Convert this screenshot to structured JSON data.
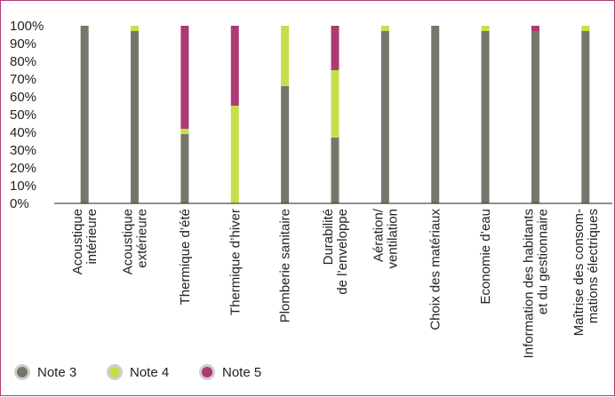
{
  "chart_data": {
    "type": "bar",
    "stacked": true,
    "y_tick_labels": [
      "0%",
      "10%",
      "20%",
      "30%",
      "40%",
      "50%",
      "60%",
      "70%",
      "80%",
      "90%",
      "100%"
    ],
    "ylim": [
      0,
      100
    ],
    "categories": [
      [
        "Acoustique",
        "intérieure"
      ],
      [
        "Acoustique",
        "extérieure"
      ],
      [
        "Thermique d’été"
      ],
      [
        "Thermique d’hiver"
      ],
      [
        "Plomberie sanitaire"
      ],
      [
        "Durabilité",
        "de l’enveloppe"
      ],
      [
        "Aération/",
        "ventilation"
      ],
      [
        "Choix des matériaux"
      ],
      [
        "Economie d’eau"
      ],
      [
        "Information des habitants",
        "et du gestionnaire"
      ],
      [
        "Maîtrise des consom-",
        "mations électriques"
      ]
    ],
    "series": [
      {
        "name": "Note 3",
        "color": "#76766a",
        "values": [
          100,
          97,
          39,
          0,
          66,
          37,
          97,
          100,
          97,
          97,
          97
        ]
      },
      {
        "name": "Note 4",
        "color": "#c5df4c",
        "values": [
          0,
          3,
          3,
          55,
          34,
          38,
          3,
          0,
          3,
          0,
          3
        ]
      },
      {
        "name": "Note 5",
        "color": "#ae3a72",
        "values": [
          0,
          0,
          58,
          45,
          0,
          25,
          0,
          0,
          0,
          3,
          0
        ]
      }
    ],
    "grid": false,
    "legend_position": "bottom-left"
  }
}
